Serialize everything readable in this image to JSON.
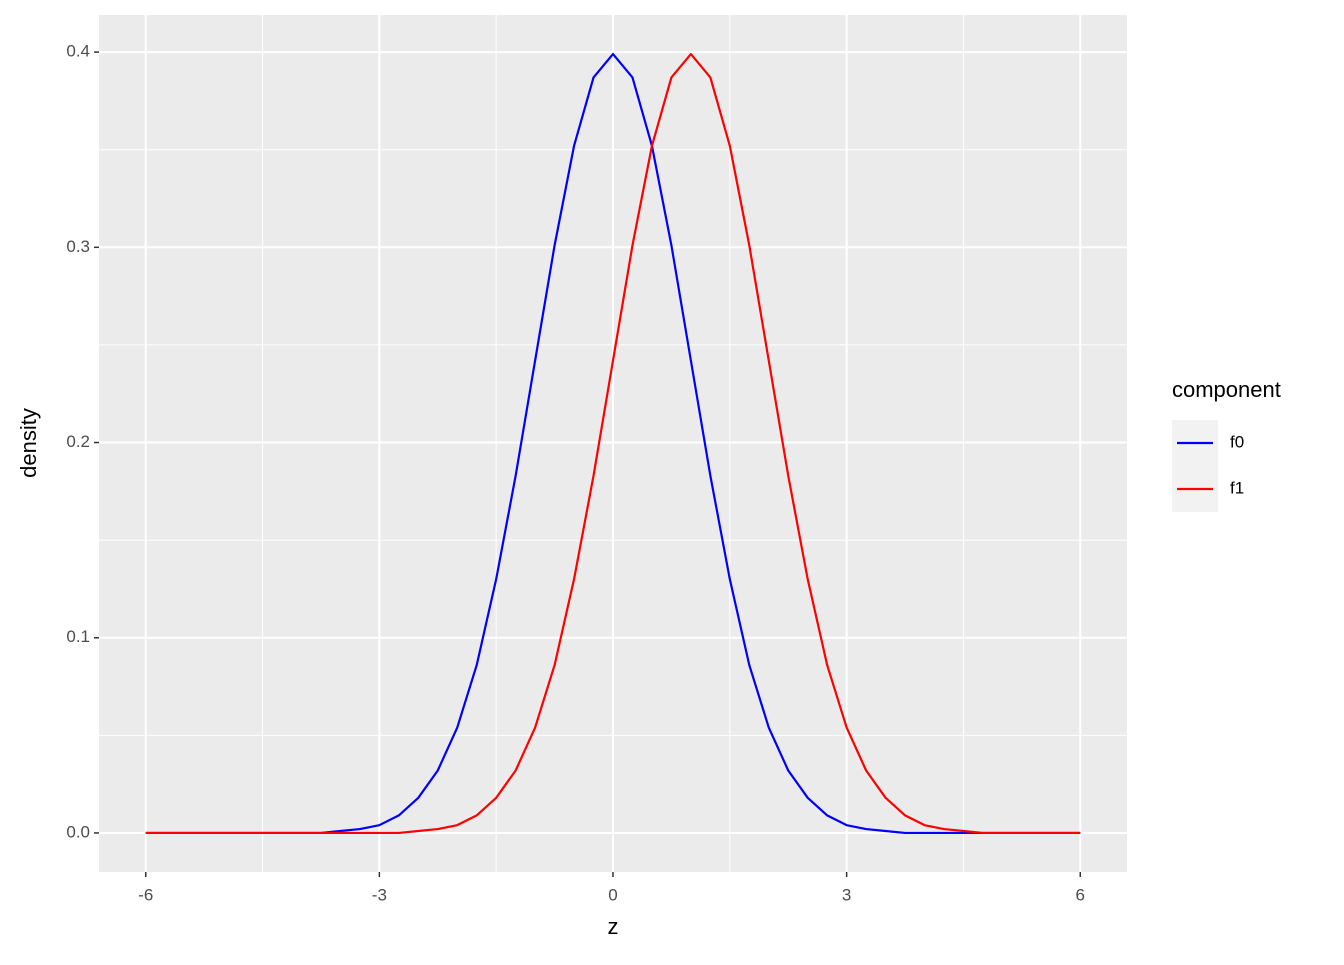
{
  "chart_data": {
    "type": "line",
    "x_label": "z",
    "y_label": "density",
    "legend_title": "component",
    "x": [
      -6,
      -5.75,
      -5.5,
      -5.25,
      -5,
      -4.75,
      -4.5,
      -4.25,
      -4,
      -3.75,
      -3.5,
      -3.25,
      -3,
      -2.75,
      -2.5,
      -2.25,
      -2,
      -1.75,
      -1.5,
      -1.25,
      -1,
      -0.75,
      -0.5,
      -0.25,
      0,
      0.25,
      0.5,
      0.75,
      1,
      1.25,
      1.5,
      1.75,
      2,
      2.25,
      2.5,
      2.75,
      3,
      3.25,
      3.5,
      3.75,
      4,
      4.25,
      4.5,
      4.75,
      5,
      5.25,
      5.5,
      5.75,
      6
    ],
    "series": [
      {
        "name": "f0",
        "color": "#0000ff",
        "values": [
          0,
          0,
          0,
          0,
          0,
          0,
          0,
          0,
          0,
          0,
          0.001,
          0.002,
          0.004,
          0.009,
          0.018,
          0.032,
          0.054,
          0.086,
          0.13,
          0.183,
          0.242,
          0.301,
          0.352,
          0.387,
          0.399,
          0.387,
          0.352,
          0.301,
          0.242,
          0.183,
          0.13,
          0.086,
          0.054,
          0.032,
          0.018,
          0.009,
          0.004,
          0.002,
          0.001,
          0,
          0,
          0,
          0,
          0,
          0,
          0,
          0,
          0,
          0
        ]
      },
      {
        "name": "f1",
        "color": "#ff0000",
        "values": [
          0,
          0,
          0,
          0,
          0,
          0,
          0,
          0,
          0,
          0,
          0,
          0,
          0,
          0,
          0.001,
          0.002,
          0.004,
          0.009,
          0.018,
          0.032,
          0.054,
          0.086,
          0.13,
          0.183,
          0.242,
          0.301,
          0.352,
          0.387,
          0.399,
          0.387,
          0.352,
          0.301,
          0.242,
          0.183,
          0.13,
          0.086,
          0.054,
          0.032,
          0.018,
          0.009,
          0.004,
          0.002,
          0.001,
          0,
          0,
          0,
          0,
          0,
          0
        ]
      }
    ],
    "xlim": [
      -6.6,
      6.6
    ],
    "ylim": [
      -0.02,
      0.419
    ],
    "xticks": [
      -6,
      -3,
      0,
      3,
      6
    ],
    "yticks": [
      {
        "value": 0,
        "label": "0.0"
      },
      0.1,
      0.2,
      0.3,
      0.4
    ],
    "grid": true
  }
}
